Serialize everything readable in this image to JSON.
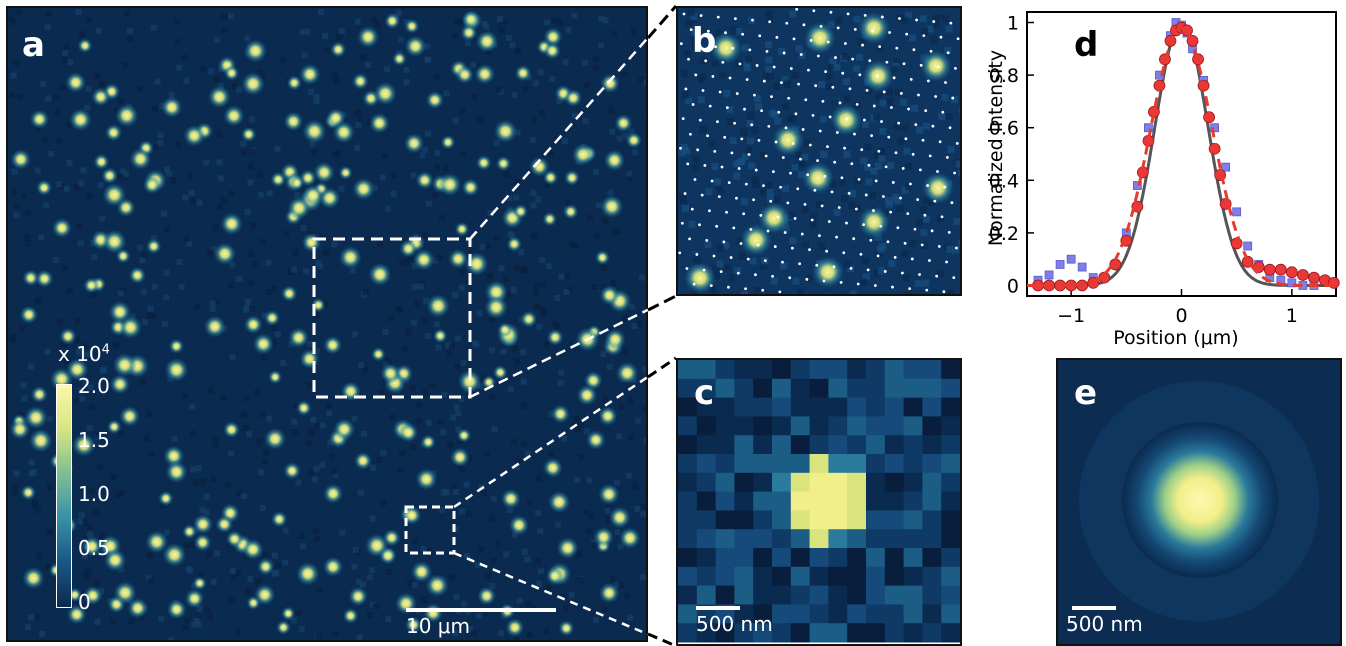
{
  "panels": {
    "a": {
      "label": "a",
      "scalebar": "10 μm",
      "colorbar": {
        "exponent_label": "x 10",
        "exponent": "4",
        "ticks": [
          "2.0",
          "1.5",
          "1.0",
          "0.5",
          "0"
        ]
      }
    },
    "b": {
      "label": "b"
    },
    "c": {
      "label": "c",
      "scalebar": "500 nm"
    },
    "d": {
      "label": "d"
    },
    "e": {
      "label": "e",
      "scalebar": "500 nm"
    }
  },
  "colors": {
    "background": "#0b2a4f",
    "bright": "#f7f29a",
    "mid": "#2f86a8",
    "fit": "#e83a2c",
    "marker_circle": "#e8383a",
    "marker_square": "#7f7fe6",
    "model": "#555555"
  },
  "chart_data": {
    "type": "line",
    "xlabel": "Position (μm)",
    "ylabel": "Normalized intensity",
    "xlim": [
      -1.4,
      1.4
    ],
    "ylim": [
      -0.04,
      1.04
    ],
    "xticks": [
      -1,
      0,
      1
    ],
    "yticks": [
      0,
      0.2,
      0.4,
      0.6,
      0.8,
      1
    ],
    "ytick_labels": [
      "0",
      "0.2",
      "0.4",
      "0.6",
      "0.8",
      "1"
    ],
    "xtick_labels": [
      "−1",
      "0",
      "1"
    ],
    "series": [
      {
        "style": "circles",
        "x": [
          -1.3,
          -1.2,
          -1.1,
          -1.0,
          -0.9,
          -0.8,
          -0.7,
          -0.6,
          -0.5,
          -0.4,
          -0.35,
          -0.3,
          -0.25,
          -0.2,
          -0.15,
          -0.1,
          -0.05,
          0,
          0.05,
          0.1,
          0.15,
          0.2,
          0.25,
          0.3,
          0.35,
          0.4,
          0.5,
          0.6,
          0.7,
          0.8,
          0.9,
          1.0,
          1.1,
          1.2,
          1.3,
          1.38
        ],
        "y": [
          0,
          0,
          0,
          0,
          0,
          0.01,
          0.03,
          0.08,
          0.17,
          0.3,
          0.43,
          0.55,
          0.66,
          0.76,
          0.86,
          0.93,
          0.97,
          0.98,
          0.97,
          0.93,
          0.86,
          0.76,
          0.64,
          0.52,
          0.42,
          0.31,
          0.16,
          0.09,
          0.07,
          0.06,
          0.06,
          0.05,
          0.04,
          0.03,
          0.02,
          0.01
        ]
      },
      {
        "style": "squares",
        "x": [
          -1.3,
          -1.2,
          -1.1,
          -1.0,
          -0.9,
          -0.8,
          -0.7,
          -0.6,
          -0.5,
          -0.4,
          -0.3,
          -0.2,
          -0.1,
          -0.05,
          0,
          0.05,
          0.1,
          0.2,
          0.3,
          0.4,
          0.5,
          0.6,
          0.7,
          0.8,
          0.9,
          1.0,
          1.1,
          1.2
        ],
        "y": [
          0.02,
          0.04,
          0.08,
          0.1,
          0.07,
          0.03,
          0.03,
          0.08,
          0.2,
          0.38,
          0.6,
          0.8,
          0.95,
          1.0,
          0.99,
          0.96,
          0.9,
          0.78,
          0.6,
          0.45,
          0.28,
          0.15,
          0.08,
          0.03,
          0.02,
          0.01,
          0.0,
          0.0
        ]
      },
      {
        "style": "dashed-fit",
        "center": 0,
        "sigma": 0.28,
        "amplitude": 0.98
      },
      {
        "style": "solid-model",
        "center": 0,
        "sigma": 0.24,
        "amplitude": 1.0
      }
    ]
  }
}
